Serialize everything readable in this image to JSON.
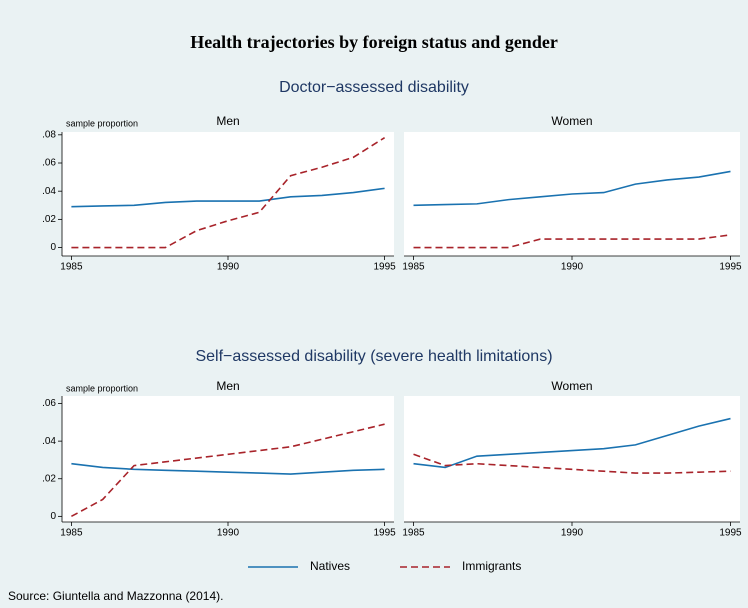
{
  "title": "Health trajectories by foreign status and gender",
  "source": "Source: Giuntella and Mazzonna (2014).",
  "chart_data": [
    {
      "type": "line",
      "subtitle": "Doctor−assessed disability",
      "panel": "Men",
      "ylabel": "sample proportion",
      "x": [
        1985,
        1986,
        1987,
        1988,
        1989,
        1990,
        1991,
        1992,
        1993,
        1994,
        1995
      ],
      "xlim": [
        1984.7,
        1995.3
      ],
      "xticks": [
        1985,
        1990,
        1995
      ],
      "ylim": [
        -0.006,
        0.082
      ],
      "yticks": [
        0,
        {
          "value": 0.02,
          "label": ".02"
        },
        {
          "value": 0.04,
          "label": ".04"
        },
        {
          "value": 0.06,
          "label": ".06"
        },
        {
          "value": 0.08,
          "label": ".08"
        }
      ],
      "series": [
        {
          "name": "Natives",
          "color": "#1a72b0",
          "dash": false,
          "values": [
            0.029,
            0.0295,
            0.03,
            0.032,
            0.033,
            0.033,
            0.033,
            0.036,
            0.037,
            0.039,
            0.042
          ]
        },
        {
          "name": "Immigrants",
          "color": "#a8232a",
          "dash": true,
          "values": [
            0,
            0,
            0,
            0,
            0.012,
            0.019,
            0.025,
            0.051,
            0.057,
            0.064,
            0.078
          ]
        }
      ]
    },
    {
      "type": "line",
      "panel": "Women",
      "x": [
        1985,
        1986,
        1987,
        1988,
        1989,
        1990,
        1991,
        1992,
        1993,
        1994,
        1995
      ],
      "xlim": [
        1984.7,
        1995.3
      ],
      "xticks": [
        1985,
        1990,
        1995
      ],
      "ylim": [
        -0.006,
        0.082
      ],
      "series": [
        {
          "color": "#1a72b0",
          "dash": false,
          "values": [
            0.03,
            0.0305,
            0.031,
            0.034,
            0.036,
            0.038,
            0.039,
            0.045,
            0.048,
            0.05,
            0.054
          ]
        },
        {
          "color": "#a8232a",
          "dash": true,
          "values": [
            0,
            0,
            0,
            0,
            0.006,
            0.006,
            0.006,
            0.006,
            0.006,
            0.006,
            0.009
          ]
        }
      ]
    },
    {
      "type": "line",
      "subtitle": "Self−assessed disability (severe health limitations)",
      "panel": "Men",
      "ylabel": "sample proportion",
      "x": [
        1985,
        1986,
        1987,
        1988,
        1989,
        1990,
        1991,
        1992,
        1993,
        1994,
        1995
      ],
      "xlim": [
        1984.7,
        1995.3
      ],
      "xticks": [
        1985,
        1990,
        1995
      ],
      "ylim": [
        -0.003,
        0.064
      ],
      "yticks": [
        0,
        {
          "value": 0.02,
          "label": ".02"
        },
        {
          "value": 0.04,
          "label": ".04"
        },
        {
          "value": 0.06,
          "label": ".06"
        }
      ],
      "series": [
        {
          "color": "#1a72b0",
          "dash": false,
          "values": [
            0.028,
            0.026,
            0.025,
            0.0245,
            0.024,
            0.0235,
            0.023,
            0.0225,
            0.0235,
            0.0245,
            0.025
          ]
        },
        {
          "color": "#a8232a",
          "dash": true,
          "values": [
            0,
            0.009,
            0.027,
            0.029,
            0.031,
            0.033,
            0.035,
            0.037,
            0.041,
            0.045,
            0.049
          ]
        }
      ]
    },
    {
      "type": "line",
      "panel": "Women",
      "x": [
        1985,
        1986,
        1987,
        1988,
        1989,
        1990,
        1991,
        1992,
        1993,
        1994,
        1995
      ],
      "xlim": [
        1984.7,
        1995.3
      ],
      "xticks": [
        1985,
        1990,
        1995
      ],
      "ylim": [
        -0.003,
        0.064
      ],
      "series": [
        {
          "color": "#1a72b0",
          "dash": false,
          "values": [
            0.028,
            0.026,
            0.032,
            0.033,
            0.034,
            0.035,
            0.036,
            0.038,
            0.043,
            0.048,
            0.052
          ]
        },
        {
          "color": "#a8232a",
          "dash": true,
          "values": [
            0.033,
            0.027,
            0.028,
            0.027,
            0.026,
            0.025,
            0.024,
            0.023,
            0.023,
            0.0235,
            0.024
          ]
        }
      ]
    }
  ]
}
